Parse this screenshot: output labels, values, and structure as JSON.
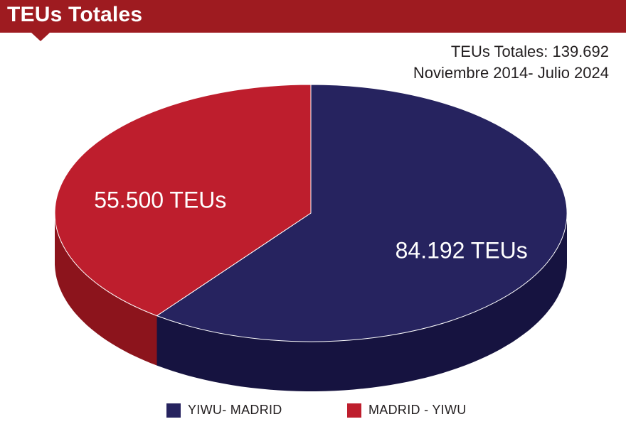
{
  "header": {
    "title": "TEUs Totales"
  },
  "subtitle": {
    "total": "TEUs Totales: 139.692",
    "period": "Noviembre 2014- Julio 2024"
  },
  "colors": {
    "header": "#9e1b20",
    "navy_top": "#26235f",
    "navy_side": "#161340",
    "red_top": "#be1e2d",
    "red_side": "#8c141c"
  },
  "chart_data": {
    "type": "pie",
    "title": "TEUs Totales",
    "unit": "TEUs",
    "total": 139692,
    "slices": [
      {
        "name": "YIWU- MADRID",
        "value": 84192,
        "label": "84.192 TEUs",
        "color": "#26235f",
        "side_color": "#161340"
      },
      {
        "name": "MADRID - YIWU",
        "value": 55500,
        "label": "55.500 TEUs",
        "color": "#be1e2d",
        "side_color": "#8c141c"
      }
    ],
    "legend": [
      {
        "label": "YIWU- MADRID",
        "color": "#26235f"
      },
      {
        "label": "MADRID - YIWU",
        "color": "#be1e2d"
      }
    ],
    "legend_position": "bottom"
  }
}
